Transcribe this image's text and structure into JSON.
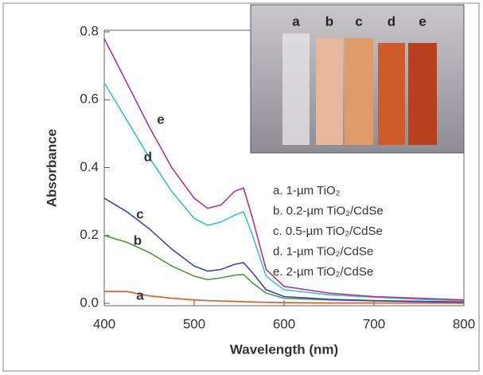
{
  "chart_data": {
    "type": "line",
    "xlabel": "Wavelength (nm)",
    "ylabel": "Absorbance",
    "x": [
      400,
      425,
      450,
      475,
      500,
      515,
      530,
      545,
      555,
      565,
      580,
      600,
      650,
      700,
      750,
      800
    ],
    "xlim": [
      400,
      800
    ],
    "xticks": [
      400,
      500,
      600,
      700,
      800
    ],
    "ylim": [
      0,
      0.8
    ],
    "yticks": [
      {
        "value": 0,
        "label": "0.0"
      },
      0.2,
      0.4,
      0.6,
      0.8
    ],
    "photo_labels": [
      "a",
      "b",
      "c",
      "d",
      "e"
    ],
    "series": [
      {
        "name": "a. 1-µm TiO₂",
        "curve_label": "a",
        "color": "#e0562a",
        "values": [
          0.035,
          0.035,
          0.022,
          0.015,
          0.01,
          0.008,
          0.007,
          0.006,
          0.005,
          0.004,
          0.003,
          0.002,
          0.001,
          0.001,
          0.001,
          0
        ]
      },
      {
        "name": "b. 0.2-µm TiO₂/CdSe",
        "curve_label": "b",
        "color": "#4f9a3c",
        "values": [
          0.2,
          0.18,
          0.15,
          0.11,
          0.08,
          0.07,
          0.075,
          0.083,
          0.085,
          0.06,
          0.03,
          0.015,
          0.01,
          0.007,
          0.005,
          0.003
        ]
      },
      {
        "name": "c. 0.5-µm TiO₂/CdSe",
        "curve_label": "c",
        "color": "#3a45a8",
        "values": [
          0.31,
          0.27,
          0.22,
          0.16,
          0.11,
          0.095,
          0.1,
          0.115,
          0.12,
          0.09,
          0.04,
          0.02,
          0.012,
          0.008,
          0.006,
          0.004
        ]
      },
      {
        "name": "d. 1-µm TiO₂/CdSe",
        "curve_label": "d",
        "color": "#3bbfd6",
        "values": [
          0.65,
          0.54,
          0.43,
          0.33,
          0.25,
          0.23,
          0.24,
          0.26,
          0.27,
          0.2,
          0.08,
          0.04,
          0.025,
          0.018,
          0.012,
          0.008
        ]
      },
      {
        "name": "e. 2-µm TiO₂/CdSe",
        "curve_label": "e",
        "color": "#b0387f",
        "values": [
          0.78,
          0.65,
          0.52,
          0.4,
          0.31,
          0.28,
          0.29,
          0.33,
          0.34,
          0.25,
          0.1,
          0.05,
          0.03,
          0.02,
          0.015,
          0.01
        ]
      }
    ]
  }
}
